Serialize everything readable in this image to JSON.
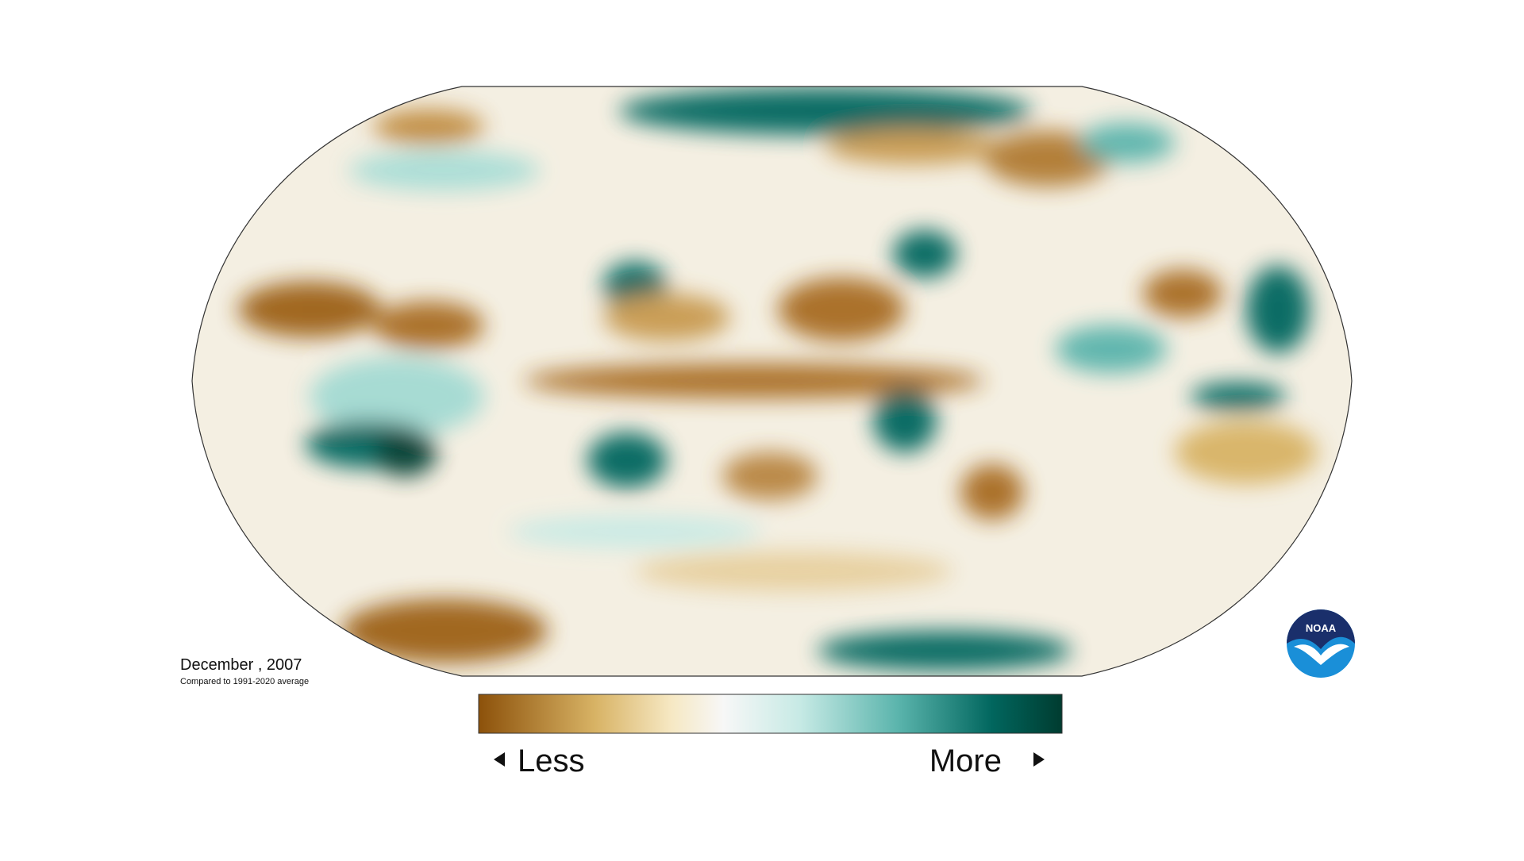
{
  "map": {
    "title": "December , 2007",
    "subtitle": "Compared to 1991-2020 average"
  },
  "legend": {
    "low_label": "Less",
    "high_label": "More"
  },
  "logo": {
    "text": "NOAA"
  }
}
